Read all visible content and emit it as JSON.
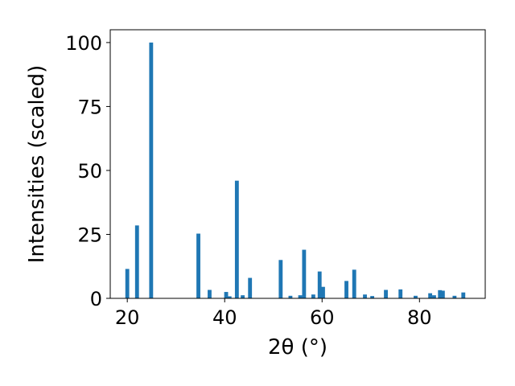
{
  "chart_data": {
    "type": "bar",
    "title": "",
    "xlabel": "2θ (°)",
    "ylabel": "Intensities (scaled)",
    "xlim": [
      16.5,
      93.5
    ],
    "ylim": [
      0,
      105
    ],
    "xticks": [
      20,
      40,
      60,
      80
    ],
    "yticks": [
      0,
      25,
      50,
      75,
      100
    ],
    "grid": false,
    "legend": "none",
    "color": "#1f77b4",
    "bar_width_deg": 0.8,
    "x": [
      20.0,
      22.0,
      24.9,
      34.6,
      36.9,
      40.3,
      41.0,
      42.5,
      43.7,
      45.2,
      51.5,
      53.5,
      55.5,
      56.3,
      58.2,
      59.5,
      60.2,
      65.0,
      66.6,
      68.8,
      70.3,
      73.1,
      76.1,
      79.2,
      82.2,
      83.0,
      84.2,
      84.8,
      87.2,
      89.0
    ],
    "values": [
      11.5,
      28.5,
      100.0,
      25.3,
      3.3,
      2.5,
      0.8,
      46.0,
      1.2,
      8.0,
      15.0,
      1.0,
      1.2,
      19.0,
      1.5,
      10.5,
      4.5,
      6.8,
      11.2,
      1.5,
      0.9,
      3.3,
      3.5,
      1.0,
      2.0,
      1.2,
      3.2,
      3.0,
      1.0,
      2.3
    ]
  }
}
